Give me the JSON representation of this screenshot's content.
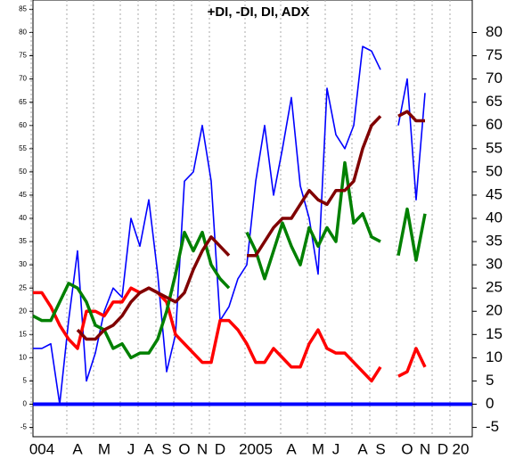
{
  "chart_data": {
    "type": "line",
    "title": "+DI, -DI, DI, ADX",
    "categories": [
      null,
      "004",
      null,
      null,
      null,
      "A",
      null,
      null,
      "M",
      null,
      null,
      "J",
      null,
      "A",
      null,
      "S",
      null,
      "O",
      null,
      "N",
      null,
      "D",
      null,
      null,
      null,
      "2005",
      null,
      null,
      null,
      "A",
      null,
      null,
      "M",
      null,
      "J",
      null,
      null,
      "A",
      null,
      "S",
      null,
      null,
      "O",
      null,
      "N",
      null,
      "D",
      null,
      "20",
      null
    ],
    "series": [
      {
        "color": "#0000ff",
        "values": [
          12,
          12,
          13,
          0,
          18,
          33,
          5,
          11,
          20,
          25,
          23,
          40,
          34,
          44,
          28,
          7,
          15,
          48,
          50,
          60,
          48,
          18,
          21,
          27,
          30,
          48,
          60,
          45,
          55,
          66,
          47,
          40,
          28,
          68,
          58,
          55,
          60,
          77,
          76,
          72,
          null,
          60,
          70,
          44,
          67,
          null,
          null,
          null,
          null,
          null
        ]
      },
      {
        "color": "#ff0000",
        "values": [
          24,
          24,
          21,
          17,
          14,
          12,
          20,
          20,
          19,
          22,
          22,
          25,
          24,
          25,
          24,
          22,
          15,
          13,
          11,
          9,
          9,
          18,
          18,
          16,
          13,
          9,
          9,
          12,
          10,
          8,
          8,
          13,
          16,
          12,
          11,
          11,
          9,
          7,
          5,
          8,
          null,
          6,
          7,
          12,
          8,
          null,
          null,
          null,
          null,
          null
        ]
      },
      {
        "color": "#008000",
        "values": [
          19,
          18,
          18,
          22,
          26,
          25,
          22,
          17,
          16,
          12,
          13,
          10,
          11,
          11,
          14,
          20,
          28,
          37,
          33,
          37,
          30,
          27,
          25,
          null,
          37,
          33,
          27,
          33,
          39,
          34,
          30,
          38,
          34,
          38,
          35,
          52,
          39,
          41,
          36,
          35,
          null,
          32,
          42,
          31,
          41,
          null,
          null,
          null,
          null,
          null
        ]
      },
      {
        "color": "#800000",
        "values": [
          null,
          null,
          null,
          null,
          null,
          16,
          14,
          14,
          16,
          17,
          19,
          22,
          24,
          25,
          24,
          23,
          22,
          24,
          29,
          33,
          36,
          34,
          32,
          null,
          32,
          32,
          35,
          38,
          40,
          40,
          43,
          46,
          44,
          43,
          46,
          46,
          48,
          55,
          60,
          62,
          null,
          62,
          63,
          61,
          61,
          null,
          null,
          null,
          null,
          null
        ]
      }
    ],
    "reference_line": {
      "value": 0,
      "color": "#0000ff"
    },
    "ylim": [
      -7,
      87
    ],
    "yticks": [
      -5,
      0,
      5,
      10,
      15,
      20,
      25,
      30,
      35,
      40,
      45,
      50,
      55,
      60,
      65,
      70,
      75,
      80,
      85
    ],
    "y2lim": [
      -7,
      87
    ],
    "y2ticks": [
      -5,
      0,
      5,
      10,
      15,
      20,
      25,
      30,
      35,
      40,
      45,
      50,
      55,
      60,
      65,
      70,
      75,
      80
    ],
    "grid": true
  }
}
